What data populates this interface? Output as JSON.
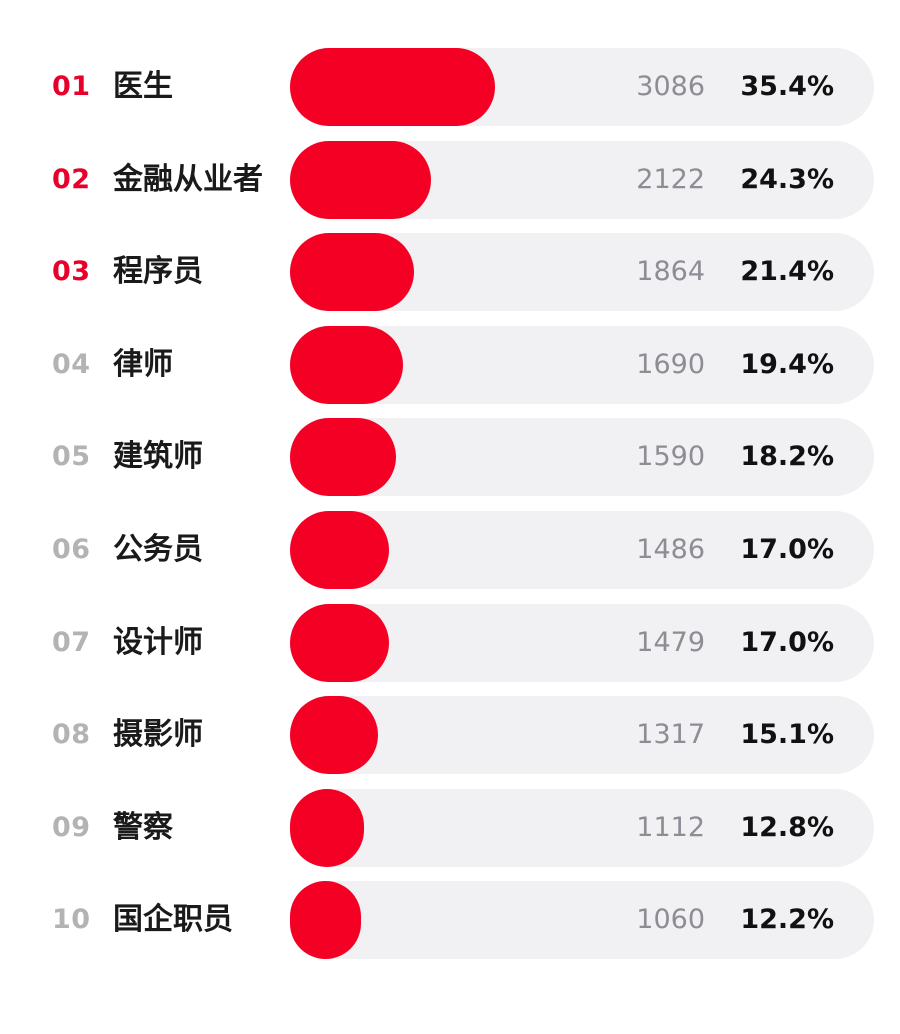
{
  "chart_data": {
    "type": "bar",
    "orientation": "horizontal",
    "categories": [
      "医生",
      "金融从业者",
      "程序员",
      "律师",
      "建筑师",
      "公务员",
      "设计师",
      "摄影师",
      "警察",
      "国企职员"
    ],
    "ranks": [
      "01",
      "02",
      "03",
      "04",
      "05",
      "06",
      "07",
      "08",
      "09",
      "10"
    ],
    "values": [
      3086,
      2122,
      1864,
      1690,
      1590,
      1486,
      1479,
      1317,
      1112,
      1060
    ],
    "value_labels": [
      "3086",
      "2122",
      "1864",
      "1690",
      "1590",
      "1486",
      "1479",
      "1317",
      "1112",
      "1060"
    ],
    "percent_values": [
      35.4,
      24.3,
      21.4,
      19.4,
      18.2,
      17.0,
      17.0,
      15.1,
      12.8,
      12.2
    ],
    "percent_labels": [
      "35.4%",
      "24.3%",
      "21.4%",
      "19.4%",
      "18.2%",
      "17.0%",
      "17.0%",
      "15.1%",
      "12.8%",
      "12.2%"
    ],
    "highlight_top": 3,
    "title": "",
    "xlabel": "",
    "ylabel": "",
    "grid": false,
    "colors": {
      "bar": "#f40024",
      "track": "#f1f0f2",
      "rank_highlight": "#e8002a",
      "rank_default": "#b3b3b3",
      "label": "#1a1a1a",
      "count": "#8e8c94",
      "percent": "#111111"
    }
  }
}
